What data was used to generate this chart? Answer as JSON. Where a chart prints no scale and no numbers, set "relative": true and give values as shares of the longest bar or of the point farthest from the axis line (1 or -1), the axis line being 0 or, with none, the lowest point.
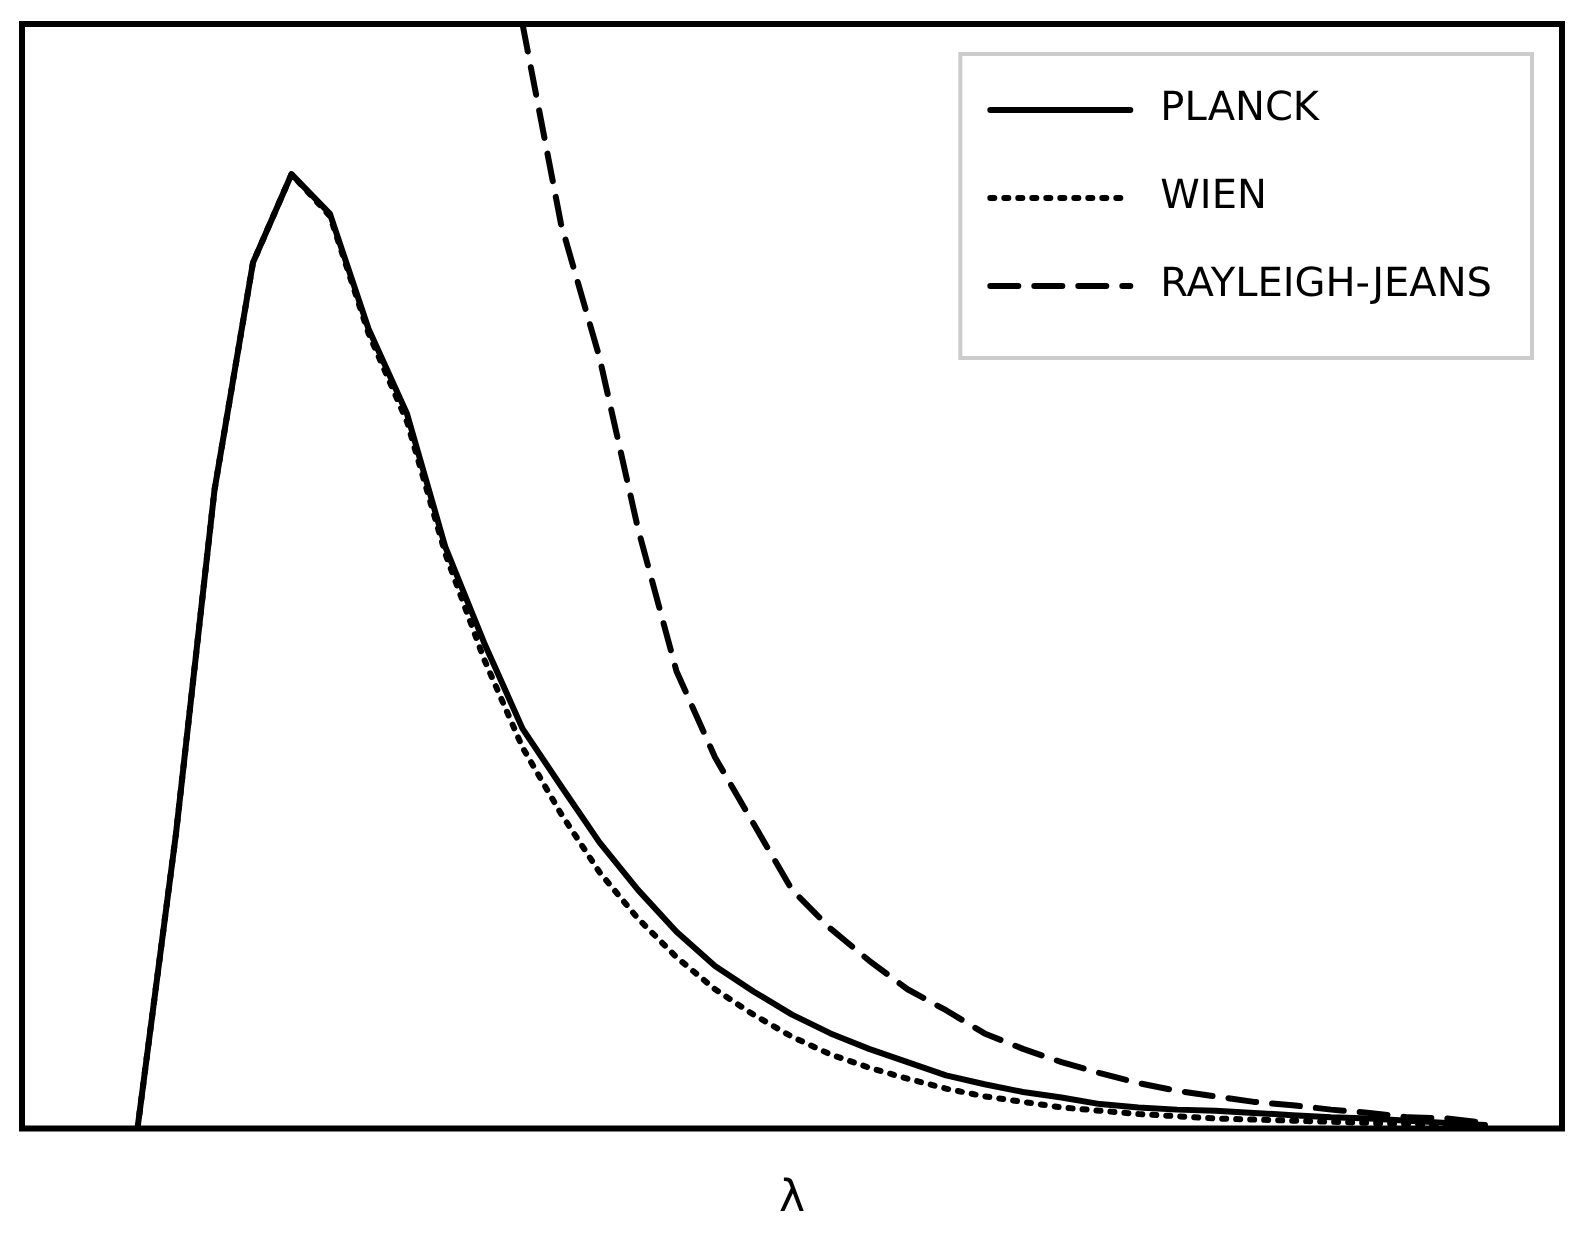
{
  "chart_data": {
    "type": "line",
    "xlabel": "λ",
    "relative": true,
    "grid": false,
    "legend": "top right",
    "marker": "none",
    "categories": [
      null,
      null,
      null,
      null,
      null,
      null,
      null,
      null,
      null,
      null,
      null,
      null,
      null,
      null,
      null,
      null,
      null,
      null,
      null,
      null,
      null,
      null,
      null,
      null,
      null,
      null,
      null,
      null,
      null,
      null,
      null,
      null,
      null,
      null,
      null,
      null,
      null,
      null,
      null,
      null,
      null
    ],
    "series": [
      {
        "name": "PLANCK",
        "color": "#000000",
        "line_style": "solid",
        "values": [
          null,
          null,
          null,
          0,
          0.267,
          0.578,
          0.784,
          0.864,
          0.828,
          0.724,
          0.647,
          0.526,
          0.44,
          0.362,
          0.31,
          0.259,
          0.216,
          0.178,
          0.147,
          0.124,
          0.103,
          0.086,
          0.072,
          0.06,
          0.048,
          0.04,
          0.033,
          0.028,
          0.022,
          0.019,
          0.017,
          0.016,
          0.014,
          0.012,
          0.01,
          0.009,
          0.007,
          0.005,
          0.003,
          null,
          null
        ]
      },
      {
        "name": "WIEN",
        "color": "#000000",
        "line_style": "dotted",
        "values": [
          null,
          null,
          null,
          0,
          0.267,
          0.578,
          0.784,
          0.864,
          0.826,
          0.72,
          0.64,
          0.52,
          0.425,
          0.345,
          0.285,
          0.232,
          0.19,
          0.155,
          0.126,
          0.103,
          0.083,
          0.067,
          0.055,
          0.045,
          0.036,
          0.029,
          0.024,
          0.019,
          0.016,
          0.013,
          0.011,
          0.009,
          0.008,
          0.007,
          0.006,
          0.005,
          0.004,
          0.003,
          0.002,
          null,
          null
        ]
      },
      {
        "name": "RAYLEIGH-JEANS",
        "color": "#000000",
        "line_style": "dashed",
        "values": [
          null,
          null,
          null,
          null,
          null,
          null,
          null,
          null,
          null,
          null,
          null,
          null,
          null,
          1,
          0.819,
          0.698,
          0.543,
          0.414,
          0.336,
          0.276,
          0.216,
          0.181,
          0.152,
          0.126,
          0.107,
          0.086,
          0.072,
          0.06,
          0.05,
          0.041,
          0.034,
          0.029,
          0.024,
          0.021,
          0.017,
          0.014,
          0.01,
          0.009,
          0.005,
          null,
          null
        ]
      }
    ]
  }
}
